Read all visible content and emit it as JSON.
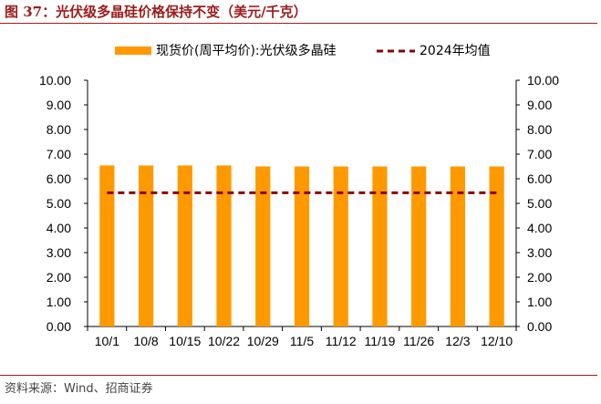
{
  "title": "图 37：光伏级多晶硅价格保持不变（美元/千克）",
  "source": "资料来源：Wind、招商证券",
  "chart_data": {
    "type": "bar",
    "categories": [
      "10/1",
      "10/8",
      "10/15",
      "10/22",
      "10/29",
      "11/5",
      "11/12",
      "11/19",
      "11/26",
      "12/3",
      "12/10"
    ],
    "series": [
      {
        "name": "现货价(周平均价):光伏级多晶硅",
        "type": "bar",
        "color": "#ff9900",
        "values": [
          6.54,
          6.54,
          6.54,
          6.54,
          6.5,
          6.5,
          6.5,
          6.5,
          6.5,
          6.5,
          6.5
        ]
      },
      {
        "name": "2024年均值",
        "type": "dashed-line",
        "color": "#8b0000",
        "values": [
          5.43,
          5.43,
          5.43,
          5.43,
          5.43,
          5.43,
          5.43,
          5.43,
          5.43,
          5.43,
          5.43
        ]
      }
    ],
    "ylim": [
      0,
      10
    ],
    "yticks": [
      "0.00",
      "1.00",
      "2.00",
      "3.00",
      "4.00",
      "5.00",
      "6.00",
      "7.00",
      "8.00",
      "9.00",
      "10.00"
    ],
    "secondary_yticks": [
      "0.00",
      "1.00",
      "2.00",
      "3.00",
      "4.00",
      "5.00",
      "6.00",
      "7.00",
      "8.00",
      "9.00",
      "10.00"
    ],
    "legend_position": "top",
    "grid": false
  }
}
